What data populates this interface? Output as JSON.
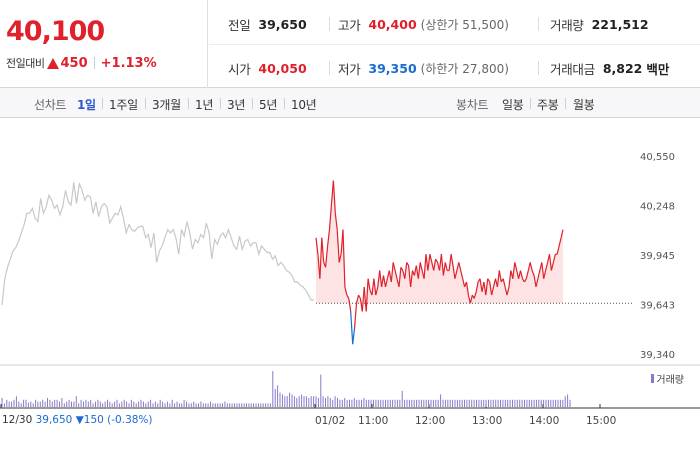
{
  "summary": {
    "price": "40,100",
    "change_label": "전일대비",
    "change_value": "450",
    "change_pct": "+1.13%",
    "prev_close": {
      "label": "전일",
      "value": "39,650"
    },
    "open": {
      "label": "시가",
      "value": "40,050"
    },
    "high": {
      "label": "고가",
      "value": "40,400",
      "sub": "(상한가 51,500)"
    },
    "low": {
      "label": "저가",
      "value": "39,350",
      "sub": "(하한가 27,800)"
    },
    "volume": {
      "label": "거래량",
      "value": "221,512"
    },
    "amount": {
      "label": "거래대금",
      "value": "8,822",
      "unit": "백만"
    }
  },
  "toolbar": {
    "line_chart_label": "선차트",
    "periods": [
      "1일",
      "1주일",
      "3개월",
      "1년",
      "3년",
      "5년",
      "10년"
    ],
    "active_period": "1일",
    "candle_chart_label": "봉차트",
    "candles": [
      "일봉",
      "주봉",
      "월봉"
    ]
  },
  "chart_data": {
    "type": "line",
    "prev_day": {
      "date": "12/30",
      "close": "39,650",
      "change": "150",
      "change_pct": "(-0.38%)"
    },
    "reference_price": 39650,
    "y_ticks": [
      "40,550",
      "40,248",
      "39,945",
      "39,643",
      "39,340"
    ],
    "ylim": [
      39340,
      40550
    ],
    "x_ticks": [
      "01/02",
      "11:00",
      "12:00",
      "13:00",
      "14:00",
      "15:00"
    ],
    "volume_legend": "거래량",
    "series": [
      {
        "values": [
          39640,
          39800,
          39870,
          39920,
          39970,
          39990,
          40030,
          40080,
          40130,
          40200,
          40200,
          40230,
          40170,
          40150,
          40290,
          40200,
          40240,
          40310,
          40280,
          40230,
          40250,
          40190,
          40240,
          40340,
          40270,
          40250,
          40390,
          40260,
          40380,
          40340,
          40280,
          40310,
          40300,
          40200,
          40270,
          40180,
          40240,
          40260,
          40240,
          40140,
          40170,
          40200,
          40190,
          40240,
          40170,
          40080,
          40130,
          40100,
          40090,
          40110,
          40120,
          40120,
          40050,
          40070,
          39990,
          40080,
          39900,
          39970,
          40000,
          40050,
          40100,
          40080,
          40100,
          40050,
          39950,
          40100,
          40060,
          40150,
          40080,
          39980,
          40040,
          40020,
          40070,
          40050,
          40140,
          40080,
          39920,
          40040,
          40010,
          40060,
          40080,
          40050,
          40100,
          40050,
          40000,
          39980,
          40060,
          39980,
          40030,
          40040,
          40000,
          40020,
          40020,
          39950,
          40000,
          39980,
          39960,
          39960,
          39920,
          39940,
          39880,
          39900,
          39880,
          39850,
          39840,
          39820,
          39780,
          39780,
          39760,
          39750,
          39730,
          39700,
          39670,
          39670
        ]
      },
      {
        "values": [
          40050,
          39950,
          39800,
          40050,
          39900,
          39870,
          40000,
          40100,
          40250,
          40400,
          40200,
          40100,
          39900,
          39950,
          40100,
          39750,
          39700,
          39680,
          39600,
          39400,
          39500,
          39650,
          39700,
          39680,
          39600,
          39750,
          39600,
          39800,
          39730,
          39700,
          39800,
          39700,
          39750,
          39850,
          39750,
          39820,
          39750,
          39800,
          39850,
          39780,
          39900,
          39850,
          39800,
          39750,
          39870,
          39850,
          39800,
          39900,
          39880,
          39750,
          39850,
          39820,
          39880,
          39800,
          39900,
          39850,
          39800,
          39950,
          39850,
          39950,
          39900,
          39850,
          39920,
          39900,
          39850,
          39950,
          39820,
          39900,
          39850,
          39850,
          39950,
          39880,
          39800,
          39850,
          39900,
          39850,
          39800,
          39750,
          39780,
          39700,
          39650,
          39700,
          39680,
          39720,
          39780,
          39800,
          39720,
          39780,
          39700,
          39800,
          39780,
          39700,
          39750,
          39800,
          39750,
          39850,
          39780,
          39800,
          39750,
          39700,
          39750,
          39850,
          39800,
          39900,
          39850,
          39800,
          39850,
          39800,
          39780,
          39800,
          39850,
          39900,
          39850,
          39820,
          39750,
          39800,
          39850,
          39900,
          39800,
          39850,
          39900,
          39950,
          39850,
          39900,
          39950,
          39950,
          40000,
          40050,
          40100
        ]
      }
    ],
    "volume": [
      0.25,
      0.1,
      0.2,
      0.15,
      0.15,
      0.2,
      0.3,
      0.15,
      0.1,
      0.2,
      0.2,
      0.12,
      0.15,
      0.1,
      0.2,
      0.15,
      0.15,
      0.2,
      0.15,
      0.25,
      0.2,
      0.15,
      0.2,
      0.2,
      0.15,
      0.25,
      0.1,
      0.15,
      0.2,
      0.15,
      0.15,
      0.3,
      0.1,
      0.2,
      0.15,
      0.2,
      0.15,
      0.2,
      0.1,
      0.15,
      0.2,
      0.15,
      0.1,
      0.15,
      0.2,
      0.15,
      0.1,
      0.15,
      0.2,
      0.1,
      0.15,
      0.2,
      0.15,
      0.1,
      0.2,
      0.15,
      0.1,
      0.15,
      0.2,
      0.15,
      0.1,
      0.15,
      0.2,
      0.1,
      0.15,
      0.1,
      0.2,
      0.15,
      0.1,
      0.15,
      0.1,
      0.2,
      0.1,
      0.15,
      0.1,
      0.1,
      0.2,
      0.15,
      0.1,
      0.1,
      0.15,
      0.1,
      0.1,
      0.15,
      0.1,
      0.1,
      0.1,
      0.15,
      0.1,
      0.1,
      0.1,
      0.1,
      0.1,
      0.15,
      0.1,
      0.1,
      0.1,
      0.1,
      0.1,
      0.1,
      0.1,
      0.1,
      0.1,
      0.1,
      0.1,
      0.1,
      0.1,
      0.1,
      0.1,
      0.1,
      0.1,
      0.1,
      0.1,
      1.0,
      0.5,
      0.6,
      0.4,
      0.35,
      0.3,
      0.3,
      0.4,
      0.35,
      0.3,
      0.25,
      0.3,
      0.35,
      0.3,
      0.3,
      0.25,
      0.3,
      0.3,
      0.3,
      0.25,
      0.9,
      0.3,
      0.25,
      0.3,
      0.25,
      0.2,
      0.3,
      0.25,
      0.2,
      0.2,
      0.25,
      0.2,
      0.2,
      0.2,
      0.25,
      0.2,
      0.2,
      0.2,
      0.25,
      0.2,
      0.2,
      0.2,
      0.2,
      0.2,
      0.2,
      0.2,
      0.2,
      0.2,
      0.2,
      0.2,
      0.2,
      0.2,
      0.2,
      0.2,
      0.45,
      0.2,
      0.2,
      0.2,
      0.2,
      0.2,
      0.2,
      0.2,
      0.2,
      0.2,
      0.2,
      0.2,
      0.2,
      0.2,
      0.2,
      0.2,
      0.35,
      0.2,
      0.2,
      0.2,
      0.2,
      0.2,
      0.2,
      0.2,
      0.2,
      0.2,
      0.2,
      0.2,
      0.2,
      0.2,
      0.2,
      0.2,
      0.2,
      0.2,
      0.2,
      0.2,
      0.2,
      0.2,
      0.2,
      0.2,
      0.2,
      0.2,
      0.2,
      0.2,
      0.2,
      0.2,
      0.2,
      0.2,
      0.2,
      0.2,
      0.2,
      0.2,
      0.2,
      0.2,
      0.2,
      0.2,
      0.2,
      0.2,
      0.2,
      0.2,
      0.2,
      0.2,
      0.2,
      0.2,
      0.2,
      0.2,
      0.2,
      0.2,
      0.3,
      0.35,
      0.2
    ],
    "colors": {
      "up": "#e0202b",
      "down": "#1b6bd1",
      "prev_line": "#c8c8c8",
      "volume": "#8a78c8",
      "fill": "#fde3e4"
    }
  }
}
